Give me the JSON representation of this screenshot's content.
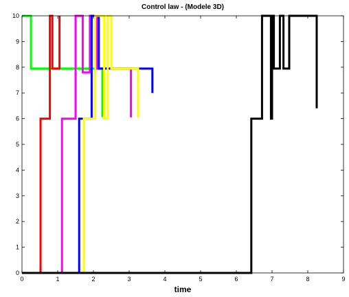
{
  "chart_data": {
    "type": "line",
    "title": "Control law  - (Modele 3D)",
    "xlabel": "time",
    "ylabel": "",
    "xlim": [
      0,
      9
    ],
    "ylim": [
      0,
      10
    ],
    "xticks": [
      0,
      1,
      2,
      3,
      4,
      5,
      6,
      7,
      8,
      9
    ],
    "yticks": [
      0,
      1,
      2,
      3,
      4,
      5,
      6,
      7,
      8,
      9,
      10
    ],
    "grid": false,
    "series": [
      {
        "color": "#00ff00",
        "x": [
          0,
          0.25,
          0.25,
          2.25,
          2.25,
          2.3,
          2.3
        ],
        "y": [
          10,
          10,
          7.95,
          7.95,
          6.1,
          6.1,
          7.95
        ]
      },
      {
        "color": "#ff0000",
        "x": [
          0,
          0.52,
          0.52,
          0.78,
          0.78,
          0.85,
          0.85,
          1.05,
          1.05
        ],
        "y": [
          0,
          0,
          6,
          6,
          10,
          10,
          7.95,
          7.95,
          10
        ]
      },
      {
        "color": "#ff00ff",
        "x": [
          0,
          1.12,
          1.12,
          1.5,
          1.5,
          1.7,
          1.7,
          1.9,
          1.9,
          2.1,
          2.1,
          3.05,
          3.05
        ],
        "y": [
          0,
          0,
          6,
          6,
          10,
          10,
          7.8,
          7.8,
          10,
          10,
          7.95,
          7.95,
          6.05
        ]
      },
      {
        "color": "#0000ff",
        "x": [
          0,
          1.6,
          1.6,
          1.95,
          1.95,
          2.15,
          2.15,
          3.65,
          3.65
        ],
        "y": [
          0,
          0,
          6,
          6,
          10,
          10,
          7.95,
          7.95,
          7
        ]
      },
      {
        "color": "#ffff00",
        "x": [
          0,
          1.73,
          1.73,
          2.05,
          2.05,
          2.3,
          2.3,
          2.4,
          2.4,
          2.5,
          2.5,
          3.25,
          3.25
        ],
        "y": [
          0,
          0,
          6,
          6,
          10,
          10,
          6,
          6,
          10,
          10,
          7.95,
          7.95,
          6.05
        ]
      },
      {
        "color": "#000000",
        "x": [
          0,
          6.42,
          6.42,
          6.72,
          6.72,
          6.97,
          6.97,
          7.0,
          7.0,
          7.05,
          7.05,
          7.22,
          7.22,
          7.32,
          7.32,
          7.48,
          7.48,
          8.25,
          8.25
        ],
        "y": [
          0,
          0,
          6,
          6,
          10,
          10,
          6,
          6,
          10,
          10,
          7.95,
          7.95,
          10,
          10,
          7.95,
          7.95,
          10,
          10,
          6.4
        ]
      }
    ]
  }
}
